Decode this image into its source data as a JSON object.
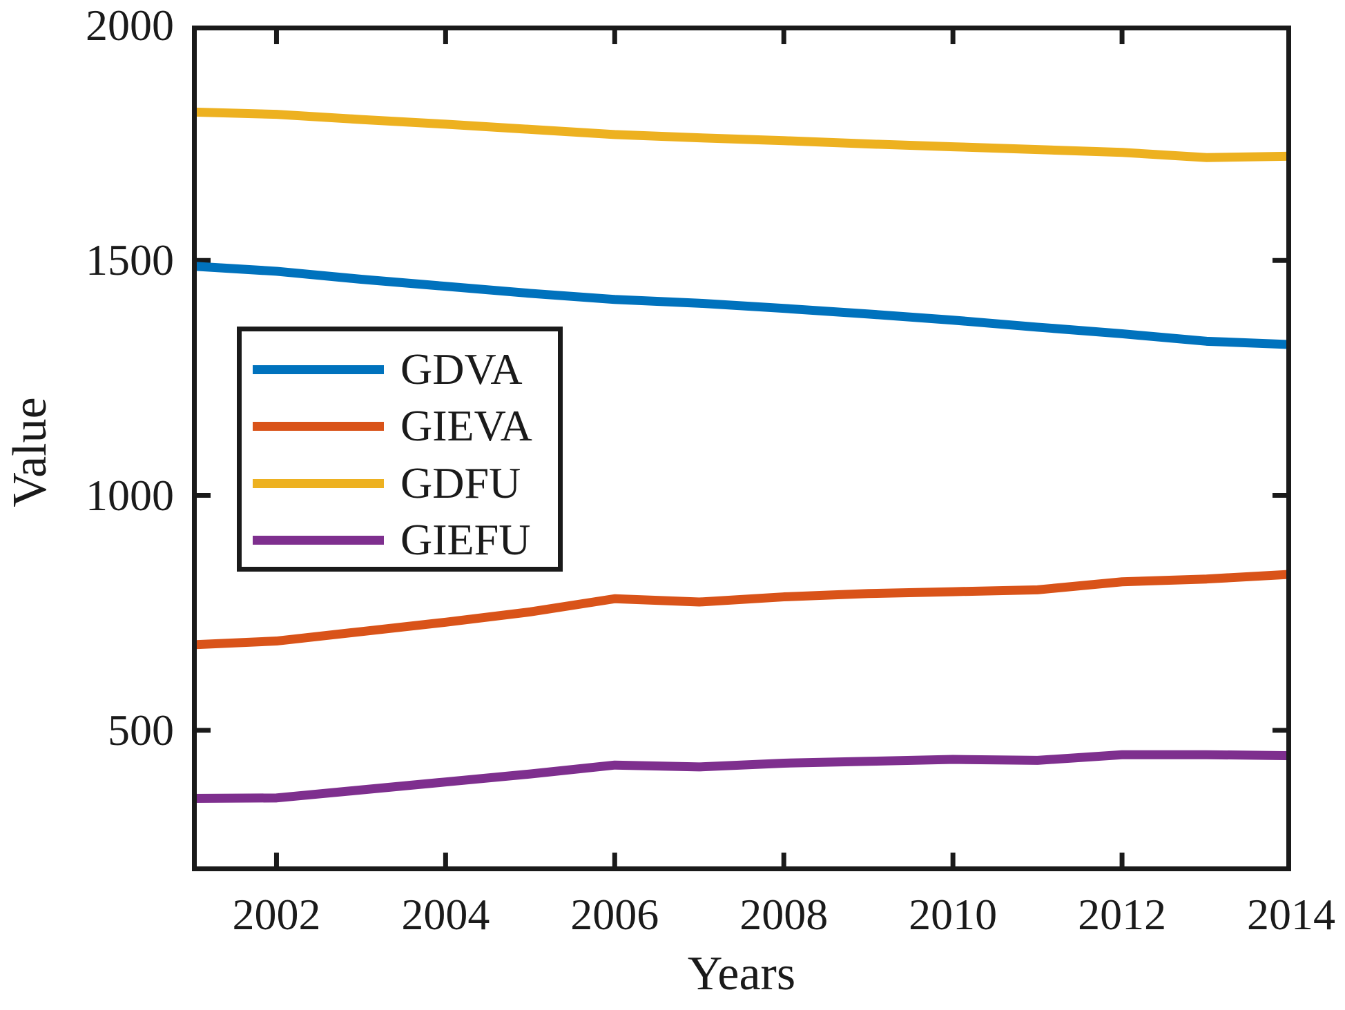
{
  "figure": {
    "background": "#ffffff",
    "axes_color": "#1a1a1a"
  },
  "chart_data": {
    "type": "line",
    "title": "",
    "xlabel": "Years",
    "ylabel": "Value",
    "xlim": [
      2001,
      2014
    ],
    "ylim": [
      200,
      2000
    ],
    "grid": false,
    "legend_position": "upper-left-inside",
    "line_width": 13,
    "x": [
      2001,
      2002,
      2003,
      2004,
      2005,
      2006,
      2007,
      2008,
      2009,
      2010,
      2011,
      2012,
      2013,
      2014
    ],
    "x_ticks": {
      "values": [
        2002,
        2004,
        2006,
        2008,
        2010,
        2012,
        2014
      ],
      "labels": [
        "2002",
        "2004",
        "2006",
        "2008",
        "2010",
        "2012",
        "2014"
      ]
    },
    "y_ticks": {
      "values": [
        500,
        1000,
        1500,
        2000
      ],
      "labels": [
        "500",
        "1000",
        "1500",
        "2000"
      ]
    },
    "series": [
      {
        "name": "GDVA",
        "color": "#0072BD",
        "values": [
          1488,
          1477,
          1460,
          1445,
          1430,
          1417,
          1409,
          1398,
          1386,
          1373,
          1358,
          1344,
          1328,
          1321
        ]
      },
      {
        "name": "GIEVA",
        "color": "#D95319",
        "values": [
          682,
          690,
          710,
          730,
          752,
          780,
          773,
          784,
          791,
          795,
          799,
          816,
          822,
          832
        ]
      },
      {
        "name": "GDFU",
        "color": "#EDB120",
        "values": [
          1816,
          1811,
          1800,
          1790,
          1779,
          1768,
          1761,
          1755,
          1748,
          1742,
          1736,
          1730,
          1719,
          1722
        ]
      },
      {
        "name": "GIEFU",
        "color": "#7E2F8E",
        "values": [
          355,
          356,
          373,
          390,
          407,
          426,
          422,
          430,
          434,
          438,
          436,
          448,
          448,
          446
        ]
      }
    ]
  }
}
